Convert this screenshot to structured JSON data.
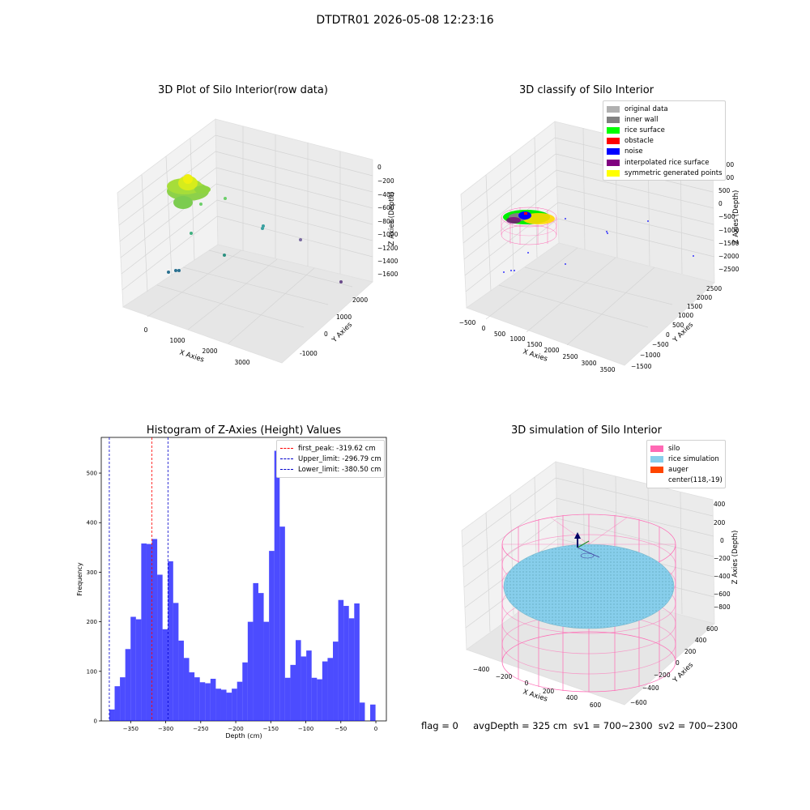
{
  "figure": {
    "title": "DTDTR01 2026-05-08 12:23:16",
    "status_line": "flag = 0     avgDepth = 325 cm  sv1 = 700~2300  sv2 = 700~2300"
  },
  "panels": {
    "raw": {
      "title": "3D Plot of Silo Interior(row data)",
      "xlabel": "X Axies",
      "ylabel": "Y Axies",
      "zlabel": "Z Axies (Depth)",
      "xticks": [
        "0",
        "1000",
        "2000",
        "3000"
      ],
      "yticks": [
        "-1000",
        "0",
        "1000",
        "2000"
      ],
      "zticks": [
        "0",
        "−200",
        "−400",
        "−600",
        "−800",
        "−1000",
        "−1200",
        "−1400",
        "−1600"
      ]
    },
    "classify": {
      "title": "3D classify of Silo Interior",
      "xlabel": "X Axies",
      "ylabel": "Y Axies",
      "zlabel": "Z Axies (Depth)",
      "xticks": [
        "−500",
        "0",
        "500",
        "1000",
        "1500",
        "2000",
        "2500",
        "3000",
        "3500"
      ],
      "yticks": [
        "−1500",
        "−1000",
        "−500",
        "0",
        "500",
        "1000",
        "1500",
        "2000",
        "2500"
      ],
      "zticks": [
        "1500",
        "1000",
        "500",
        "0",
        "−500",
        "−1000",
        "−1500",
        "−2000",
        "−2500"
      ],
      "legend": [
        {
          "label": "original data",
          "color": "#b0b0b0"
        },
        {
          "label": "inner wall",
          "color": "#808080"
        },
        {
          "label": "rice surface",
          "color": "#00ff00"
        },
        {
          "label": "obstacle",
          "color": "#ff0000"
        },
        {
          "label": "noise",
          "color": "#0000ff"
        },
        {
          "label": "interpolated rice surface",
          "color": "#800080"
        },
        {
          "label": "symmetric generated points",
          "color": "#ffff00"
        }
      ]
    },
    "simulation": {
      "title": "3D simulation of Silo Interior",
      "xlabel": "X Axies",
      "ylabel": "Y Axies",
      "zlabel": "Z Axies (Depth)",
      "xticks": [
        "−400",
        "−200",
        "0",
        "200",
        "400",
        "600"
      ],
      "yticks": [
        "−600",
        "−400",
        "−200",
        "0",
        "200",
        "400",
        "600"
      ],
      "zticks": [
        "400",
        "200",
        "0",
        "−200",
        "−400",
        "−600",
        "−800"
      ],
      "legend": [
        {
          "label": "silo",
          "color": "#ff69b4"
        },
        {
          "label": "rice simulation",
          "color": "#87ceeb"
        },
        {
          "label": "auger",
          "color": "#ff4500"
        },
        {
          "label": "center(118,-19)",
          "color": ""
        }
      ]
    }
  },
  "chart_data": [
    {
      "type": "scatter",
      "title": "3D Plot of Silo Interior(row data)",
      "xlabel": "X Axies",
      "ylabel": "Y Axies",
      "zlabel": "Z Axies (Depth)",
      "zlim": [
        -1650,
        100
      ],
      "note_points": [
        {
          "x": 2100,
          "y": 1000,
          "z": -300
        },
        {
          "x": 1800,
          "y": 400,
          "z": -600
        },
        {
          "x": 1300,
          "y": -400,
          "z": -1000
        },
        {
          "x": 3200,
          "y": 1600,
          "z": -1100
        },
        {
          "x": 2700,
          "y": 2000,
          "z": -1600
        }
      ]
    },
    {
      "type": "scatter",
      "title": "3D classify of Silo Interior",
      "xlabel": "X Axies",
      "ylabel": "Y Axies",
      "zlabel": "Z Axies (Depth)",
      "series": [
        {
          "name": "original data"
        },
        {
          "name": "inner wall"
        },
        {
          "name": "rice surface"
        },
        {
          "name": "obstacle"
        },
        {
          "name": "noise"
        },
        {
          "name": "interpolated rice surface"
        },
        {
          "name": "symmetric generated points"
        }
      ]
    },
    {
      "type": "bar",
      "title": "Histogram of Z-Axies (Height) Values",
      "xlabel": "Depth (cm)",
      "ylabel": "Frequency",
      "xlim": [
        -392,
        15
      ],
      "ylim": [
        0,
        572
      ],
      "xticks": [
        -350,
        -300,
        -250,
        -200,
        -150,
        -100,
        -50,
        0
      ],
      "yticks": [
        0,
        100,
        200,
        300,
        400,
        500
      ],
      "bin_start": -380.5,
      "bin_width": 7.6,
      "values": [
        23,
        70,
        88,
        145,
        210,
        205,
        358,
        357,
        367,
        295,
        185,
        322,
        238,
        162,
        127,
        98,
        88,
        78,
        76,
        85,
        65,
        63,
        57,
        65,
        79,
        118,
        200,
        278,
        258,
        200,
        343,
        545,
        392,
        87,
        113,
        163,
        130,
        142,
        87,
        84,
        120,
        127,
        160,
        244,
        232,
        207,
        237,
        37,
        0,
        33
      ],
      "vlines": [
        {
          "label": "first_peak: -319.62 cm",
          "x": -319.62,
          "color": "#ff0000"
        },
        {
          "label": "Upper_limit: -296.79 cm",
          "x": -296.79,
          "color": "#0000cc"
        },
        {
          "label": "Lower_limit: -380.50 cm",
          "x": -380.5,
          "color": "#0000cc"
        }
      ],
      "bar_color": "#0000ff",
      "legend_position": "top-right"
    },
    {
      "type": "scatter",
      "title": "3D simulation of Silo Interior",
      "xlabel": "X Axies",
      "ylabel": "Y Axies",
      "zlabel": "Z Axies (Depth)",
      "center": [
        118,
        -19
      ],
      "series": [
        {
          "name": "silo"
        },
        {
          "name": "rice simulation"
        },
        {
          "name": "auger"
        }
      ]
    }
  ]
}
